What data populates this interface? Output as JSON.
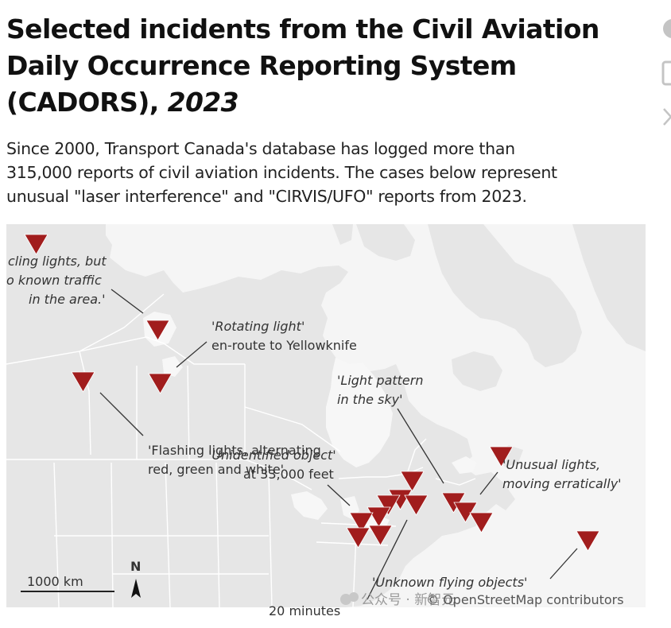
{
  "header": {
    "title_line1": "Selected incidents from the Civil Aviation",
    "title_line2": "Daily Occurrence Reporting System",
    "title_line3": "(CADORS), ",
    "title_year": "2023",
    "subtitle_line1": "Since 2000, Transport Canada's database has logged more than",
    "subtitle_line2": "315,000 reports of civil aviation incidents. The cases below represent",
    "subtitle_line3": "unusual \"laser interference\" and \"CIRVIS/UFO\" reports from 2023."
  },
  "side_icons": [
    "share-icon",
    "image-icon",
    "close-icon"
  ],
  "map": {
    "scale_label": "1000 km",
    "north_label": "N",
    "attribution": "© OpenStreetMap contributors",
    "watermark": "公众号 · 新智元",
    "colors": {
      "land": "#e8e8e8",
      "water": "#f7f7f7",
      "border": "#ffffff",
      "marker": "#a11d1d"
    },
    "annotations": {
      "a1": [
        "cling lights, but",
        "o known traffic",
        "in the area.'"
      ],
      "a2": [
        "'Rotating light'",
        "en-route to Yellowknife"
      ],
      "a3": [
        "'Light pattern",
        "in the sky'"
      ],
      "a4": [
        "'Flashing lights, alternating",
        "red, green and white'"
      ],
      "a5": [
        "'Unidentified object'",
        "at 33,000 feet"
      ],
      "a6": [
        "'Unusual lights,",
        "moving erratically'"
      ],
      "a7": [
        "'Unknown flying objects'"
      ],
      "a8": [
        "20 minutes"
      ]
    }
  }
}
